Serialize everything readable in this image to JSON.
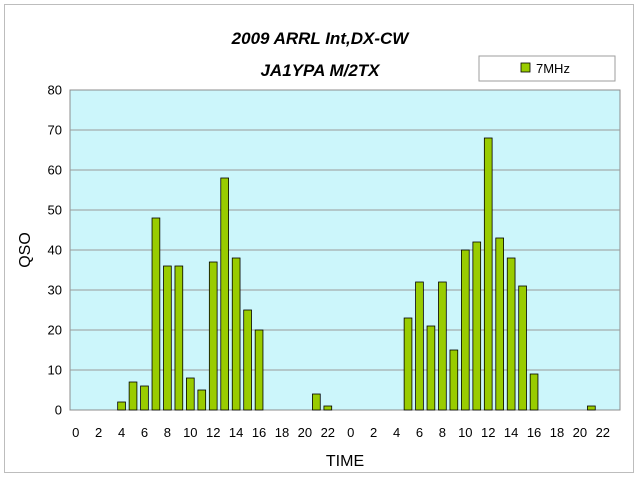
{
  "chart_data": {
    "type": "bar",
    "title": "2009 ARRL Int,DX-CW",
    "subtitle": "JA1YPA M/2TX",
    "xlabel": "TIME",
    "ylabel": "QSO",
    "ylim": [
      0,
      80
    ],
    "yticks": [
      0,
      10,
      20,
      30,
      40,
      50,
      60,
      70,
      80
    ],
    "grid": true,
    "legend_position": "top-right",
    "plot_background": "#ccf6fb",
    "bar_color": "#99cc00",
    "categories": [
      "0",
      "1",
      "2",
      "3",
      "4",
      "5",
      "6",
      "7",
      "8",
      "9",
      "10",
      "11",
      "12",
      "13",
      "14",
      "15",
      "16",
      "17",
      "18",
      "19",
      "20",
      "21",
      "22",
      "23",
      "0",
      "1",
      "2",
      "3",
      "4",
      "5",
      "6",
      "7",
      "8",
      "9",
      "10",
      "11",
      "12",
      "13",
      "14",
      "15",
      "16",
      "17",
      "18",
      "19",
      "20",
      "21",
      "22",
      "23"
    ],
    "x_tick_labels": [
      "0",
      "2",
      "4",
      "6",
      "8",
      "10",
      "12",
      "14",
      "16",
      "18",
      "20",
      "22",
      "0",
      "2",
      "4",
      "6",
      "8",
      "10",
      "12",
      "14",
      "16",
      "18",
      "20",
      "22"
    ],
    "series": [
      {
        "name": "7MHz",
        "values": [
          0,
          0,
          0,
          0,
          2,
          7,
          6,
          48,
          36,
          36,
          8,
          5,
          37,
          58,
          38,
          25,
          20,
          0,
          0,
          0,
          0,
          4,
          1,
          0,
          0,
          0,
          0,
          0,
          0,
          23,
          32,
          21,
          32,
          15,
          40,
          42,
          68,
          43,
          38,
          31,
          9,
          0,
          0,
          0,
          0,
          1,
          0,
          0
        ]
      }
    ]
  }
}
